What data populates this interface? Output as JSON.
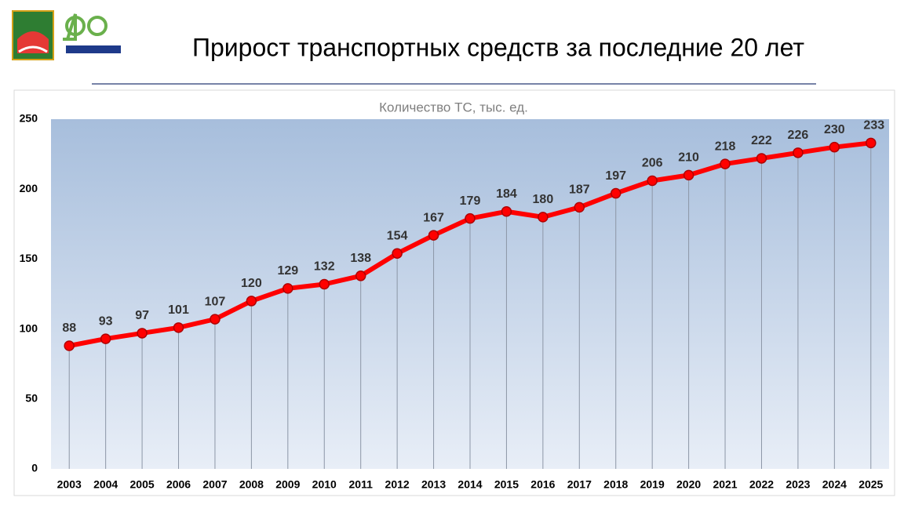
{
  "slide_title": "Прирост транспортных средств за последние 20 лет",
  "chart_data": {
    "type": "line",
    "title": "Количество ТС, тыс. ед.",
    "categories": [
      "2003",
      "2004",
      "2005",
      "2006",
      "2007",
      "2008",
      "2009",
      "2010",
      "2011",
      "2012",
      "2013",
      "2014",
      "2015",
      "2016",
      "2017",
      "2018",
      "2019",
      "2020",
      "2021",
      "2022",
      "2023",
      "2024",
      "2025"
    ],
    "values": [
      88,
      93,
      97,
      101,
      107,
      120,
      129,
      132,
      138,
      154,
      167,
      179,
      184,
      180,
      187,
      197,
      206,
      210,
      218,
      222,
      226,
      230,
      233
    ],
    "color": "#ff0000",
    "ylim": [
      0,
      250
    ],
    "yticks": [
      0,
      50,
      100,
      150,
      200,
      250
    ],
    "drop_lines": true
  }
}
